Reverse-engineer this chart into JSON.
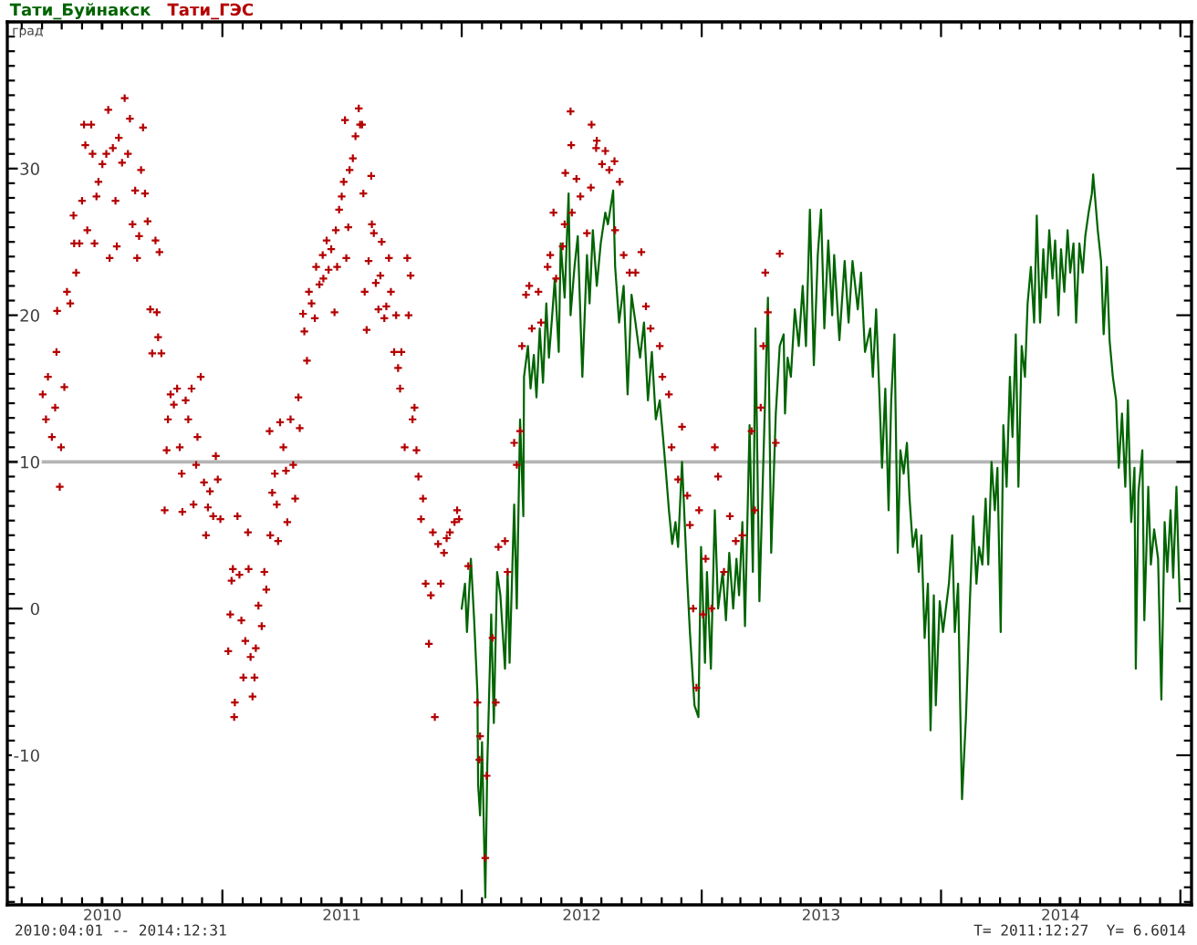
{
  "chart_data": {
    "type": "line",
    "ylabel": "град",
    "legend": "top left",
    "annotations": [
      "2010:04:01 -- 2014:12:31",
      "T= 2011:12:27  Y= 6.6014"
    ],
    "xlim": [
      "2010-02-07",
      "2015-01-18"
    ],
    "ylim": [
      -20.2,
      40
    ],
    "xticks": [
      {
        "value": "2010-07-02",
        "label": "2010"
      },
      {
        "value": "2011-01-01",
        "label": null
      },
      {
        "value": "2011-07-02",
        "label": "2011"
      },
      {
        "value": "2012-01-01",
        "label": null
      },
      {
        "value": "2012-07-02",
        "label": "2012"
      },
      {
        "value": "2013-01-01",
        "label": null
      },
      {
        "value": "2013-07-02",
        "label": "2013"
      },
      {
        "value": "2014-01-01",
        "label": null
      },
      {
        "value": "2014-07-02",
        "label": "2014"
      },
      {
        "value": "2015-01-01",
        "label": null
      }
    ],
    "yticks": [
      -10,
      0,
      10,
      20,
      30
    ],
    "ref_lines": [
      {
        "axis": "y",
        "value": 10,
        "color": "#b4b4b4"
      }
    ],
    "series": [
      {
        "name": "Тати_Буйнакск",
        "color": "#006400",
        "x": [
          "2012-01-01",
          "2012-01-06",
          "2012-01-09",
          "2012-01-15",
          "2012-01-20",
          "2012-01-25",
          "2012-01-26",
          "2012-01-29",
          "2012-02-01",
          "2012-02-06",
          "2012-02-09",
          "2012-02-15",
          "2012-02-19",
          "2012-02-24",
          "2012-02-29",
          "2012-03-07",
          "2012-03-11",
          "2012-03-14",
          "2012-03-21",
          "2012-03-25",
          "2012-03-30",
          "2012-04-04",
          "2012-04-05",
          "2012-04-11",
          "2012-04-15",
          "2012-04-20",
          "2012-04-24",
          "2012-04-29",
          "2012-05-04",
          "2012-05-09",
          "2012-05-13",
          "2012-05-18",
          "2012-05-22",
          "2012-05-28",
          "2012-05-31",
          "2012-06-06",
          "2012-06-12",
          "2012-06-15",
          "2012-06-21",
          "2012-06-26",
          "2012-07-03",
          "2012-07-10",
          "2012-07-14",
          "2012-07-19",
          "2012-07-25",
          "2012-07-31",
          "2012-08-07",
          "2012-08-11",
          "2012-08-19",
          "2012-08-22",
          "2012-08-28",
          "2012-09-04",
          "2012-09-10",
          "2012-09-16",
          "2012-09-22",
          "2012-09-29",
          "2012-10-05",
          "2012-10-11",
          "2012-10-17",
          "2012-10-23",
          "2012-10-29",
          "2012-11-03",
          "2012-11-08",
          "2012-11-12",
          "2012-11-17",
          "2012-11-22",
          "2012-11-26",
          "2012-12-02",
          "2012-12-10",
          "2012-12-14",
          "2012-12-21",
          "2012-12-27",
          "2012-12-31",
          "2013-01-06",
          "2013-01-09",
          "2013-01-15",
          "2013-01-21",
          "2013-01-26",
          "2013-02-02",
          "2013-02-07",
          "2013-02-12",
          "2013-02-18",
          "2013-02-23",
          "2013-02-27",
          "2013-03-04",
          "2013-03-08",
          "2013-03-15",
          "2013-03-20",
          "2013-03-24",
          "2013-03-30",
          "2013-04-05",
          "2013-04-12",
          "2013-04-17",
          "2013-04-24",
          "2013-04-30",
          "2013-05-06",
          "2013-05-08",
          "2013-05-12",
          "2013-05-17",
          "2013-05-23",
          "2013-05-29",
          "2013-06-04",
          "2013-06-09",
          "2013-06-15",
          "2013-06-21",
          "2013-06-27",
          "2013-07-02",
          "2013-07-07",
          "2013-07-13",
          "2013-07-19",
          "2013-07-22",
          "2013-07-30",
          "2013-08-07",
          "2013-08-13",
          "2013-08-19",
          "2013-08-27",
          "2013-09-01",
          "2013-09-07",
          "2013-09-15",
          "2013-09-19",
          "2013-09-24",
          "2013-09-29",
          "2013-10-03",
          "2013-10-08",
          "2013-10-13",
          "2013-10-17",
          "2013-10-22",
          "2013-10-27",
          "2013-10-31",
          "2013-11-05",
          "2013-11-10",
          "2013-11-14",
          "2013-11-19",
          "2013-11-24",
          "2013-11-28",
          "2013-12-02",
          "2013-12-07",
          "2013-12-12",
          "2013-12-16",
          "2013-12-21",
          "2013-12-24",
          "2013-12-30",
          "2014-01-04",
          "2014-01-13",
          "2014-01-18",
          "2014-01-22",
          "2014-01-27",
          "2014-01-30",
          "2014-02-02",
          "2014-02-08",
          "2014-02-14",
          "2014-02-19",
          "2014-02-24",
          "2014-02-28",
          "2014-03-05",
          "2014-03-10",
          "2014-03-14",
          "2014-03-19",
          "2014-03-24",
          "2014-03-28",
          "2014-04-02",
          "2014-04-06",
          "2014-04-11",
          "2014-04-16",
          "2014-04-20",
          "2014-04-25",
          "2014-04-29",
          "2014-05-04",
          "2014-05-09",
          "2014-05-13",
          "2014-05-18",
          "2014-05-23",
          "2014-05-27",
          "2014-06-01",
          "2014-06-06",
          "2014-06-10",
          "2014-06-15",
          "2014-06-20",
          "2014-06-24",
          "2014-06-29",
          "2014-07-03",
          "2014-07-08",
          "2014-07-13",
          "2014-07-17",
          "2014-07-22",
          "2014-07-26",
          "2014-07-31",
          "2014-08-05",
          "2014-08-09",
          "2014-08-14",
          "2014-08-19",
          "2014-08-21",
          "2014-08-28",
          "2014-09-02",
          "2014-09-06",
          "2014-09-11",
          "2014-09-15",
          "2014-09-20",
          "2014-09-25",
          "2014-09-29",
          "2014-10-04",
          "2014-10-09",
          "2014-10-13",
          "2014-10-18",
          "2014-10-23",
          "2014-10-25",
          "2014-10-29",
          "2014-11-04",
          "2014-11-07",
          "2014-11-13",
          "2014-11-17",
          "2014-11-22",
          "2014-11-28",
          "2014-12-03",
          "2014-12-08",
          "2014-12-12",
          "2014-12-17",
          "2014-12-21",
          "2014-12-26",
          "2014-12-31"
        ],
        "values": [
          0.0,
          1.7,
          -1.6,
          3.4,
          -0.8,
          -5.8,
          -12.0,
          -14.1,
          -9.1,
          -19.7,
          -10.7,
          -0.4,
          -7.8,
          2.5,
          0.9,
          -4.1,
          2.5,
          -3.7,
          7.1,
          0.0,
          12.9,
          6.3,
          15.8,
          17.9,
          15.0,
          17.3,
          14.4,
          19.1,
          15.4,
          20.8,
          17.1,
          20.0,
          22.5,
          17.5,
          24.9,
          21.2,
          28.3,
          20.0,
          23.3,
          25.4,
          15.8,
          24.1,
          20.8,
          25.8,
          22.0,
          24.9,
          27.0,
          26.2,
          28.5,
          23.3,
          19.5,
          22.0,
          14.6,
          21.4,
          19.5,
          17.1,
          19.5,
          14.2,
          17.5,
          12.9,
          14.2,
          11.7,
          9.0,
          6.7,
          4.4,
          5.9,
          4.2,
          10.0,
          1.9,
          -1.6,
          -6.6,
          -7.4,
          4.2,
          -3.7,
          2.5,
          -4.1,
          6.7,
          0.0,
          2.5,
          -0.8,
          3.8,
          0.0,
          3.4,
          0.9,
          5.9,
          -1.2,
          12.5,
          2.5,
          19.1,
          0.5,
          10.0,
          21.2,
          3.8,
          13.3,
          17.9,
          18.7,
          13.3,
          17.1,
          15.8,
          20.4,
          17.9,
          22.0,
          17.9,
          27.2,
          16.6,
          24.1,
          27.2,
          19.1,
          25.1,
          20.0,
          24.1,
          18.3,
          23.7,
          19.5,
          23.7,
          20.4,
          22.9,
          17.5,
          19.1,
          15.8,
          20.4,
          14.6,
          9.6,
          15.0,
          6.7,
          14.2,
          18.7,
          3.8,
          10.8,
          9.2,
          11.3,
          7.5,
          4.2,
          5.4,
          2.5,
          5.0,
          -2.0,
          1.7,
          -8.3,
          0.9,
          -6.6,
          0.5,
          -1.6,
          1.7,
          5.0,
          -1.6,
          1.7,
          -6.2,
          -13.0,
          -7.4,
          0.5,
          6.3,
          1.7,
          4.2,
          3.0,
          7.5,
          3.0,
          10.0,
          6.7,
          9.6,
          -1.6,
          12.5,
          8.3,
          15.8,
          11.7,
          18.7,
          8.3,
          17.9,
          15.8,
          20.8,
          23.3,
          19.5,
          26.8,
          19.5,
          24.5,
          21.2,
          25.8,
          22.5,
          25.1,
          20.0,
          24.5,
          21.6,
          25.8,
          22.9,
          24.9,
          19.5,
          24.9,
          22.9,
          25.4,
          27.0,
          28.3,
          29.6,
          25.8,
          23.7,
          18.7,
          23.3,
          18.3,
          15.8,
          14.2,
          9.6,
          13.3,
          8.3,
          14.2,
          5.9,
          9.6,
          -4.1,
          7.9,
          10.8,
          -0.8,
          8.3,
          3.0,
          5.4,
          3.4,
          -6.2,
          5.9,
          2.5,
          6.7,
          2.1,
          8.3,
          0.5
        ]
      },
      {
        "name": "Тати_ГЭС",
        "type": "scatter",
        "marker": "cross",
        "color": "#b40000",
        "x": [
          "2010-04-02",
          "2010-04-07",
          "2010-04-10",
          "2010-04-16",
          "2010-04-21",
          "2010-04-23",
          "2010-04-24",
          "2010-04-28",
          "2010-04-30",
          "2010-05-05",
          "2010-05-09",
          "2010-05-14",
          "2010-05-19",
          "2010-05-20",
          "2010-05-23",
          "2010-05-28",
          "2010-06-01",
          "2010-06-04",
          "2010-06-06",
          "2010-06-09",
          "2010-06-15",
          "2010-06-17",
          "2010-06-20",
          "2010-06-23",
          "2010-06-26",
          "2010-07-02",
          "2010-07-08",
          "2010-07-11",
          "2010-07-13",
          "2010-07-18",
          "2010-07-22",
          "2010-07-24",
          "2010-07-27",
          "2010-08-01",
          "2010-08-05",
          "2010-08-10",
          "2010-08-13",
          "2010-08-17",
          "2010-08-21",
          "2010-08-24",
          "2010-08-27",
          "2010-08-30",
          "2010-09-02",
          "2010-09-05",
          "2010-09-09",
          "2010-09-13",
          "2010-09-16",
          "2010-09-21",
          "2010-09-23",
          "2010-09-25",
          "2010-09-27",
          "2010-09-30",
          "2010-10-05",
          "2010-10-08",
          "2010-10-10",
          "2010-10-14",
          "2010-10-19",
          "2010-10-24",
          "2010-10-28",
          "2010-10-31",
          "2010-11-01",
          "2010-11-06",
          "2010-11-10",
          "2010-11-15",
          "2010-11-18",
          "2010-11-22",
          "2010-11-24",
          "2010-11-29",
          "2010-12-04",
          "2010-12-07",
          "2010-12-10",
          "2010-12-13",
          "2010-12-18",
          "2010-12-22",
          "2010-12-25",
          "2010-12-29",
          "2011-01-10",
          "2011-01-13",
          "2011-01-15",
          "2011-01-17",
          "2011-01-19",
          "2011-01-20",
          "2011-01-24",
          "2011-01-27",
          "2011-01-30",
          "2011-02-02",
          "2011-02-05",
          "2011-02-09",
          "2011-02-10",
          "2011-02-13",
          "2011-02-16",
          "2011-02-19",
          "2011-02-21",
          "2011-02-25",
          "2011-03-02",
          "2011-03-06",
          "2011-03-09",
          "2011-03-14",
          "2011-03-15",
          "2011-03-18",
          "2011-03-22",
          "2011-03-25",
          "2011-03-27",
          "2011-03-30",
          "2011-04-04",
          "2011-04-08",
          "2011-04-10",
          "2011-04-15",
          "2011-04-19",
          "2011-04-22",
          "2011-04-27",
          "2011-04-29",
          "2011-05-04",
          "2011-05-06",
          "2011-05-10",
          "2011-05-13",
          "2011-05-17",
          "2011-05-22",
          "2011-05-24",
          "2011-05-29",
          "2011-06-03",
          "2011-06-04",
          "2011-06-09",
          "2011-06-12",
          "2011-06-16",
          "2011-06-21",
          "2011-06-23",
          "2011-06-25",
          "2011-06-28",
          "2011-07-02",
          "2011-07-05",
          "2011-07-07",
          "2011-07-09",
          "2011-07-12",
          "2011-07-14",
          "2011-07-19",
          "2011-07-23",
          "2011-07-28",
          "2011-07-30",
          "2011-08-02",
          "2011-08-04",
          "2011-08-06",
          "2011-08-09",
          "2011-08-12",
          "2011-08-16",
          "2011-08-17",
          "2011-08-20",
          "2011-08-23",
          "2011-08-27",
          "2011-08-30",
          "2011-09-01",
          "2011-09-05",
          "2011-09-08",
          "2011-09-12",
          "2011-09-15",
          "2011-09-20",
          "2011-09-23",
          "2011-09-26",
          "2011-09-29",
          "2011-10-01",
          "2011-10-06",
          "2011-10-10",
          "2011-10-12",
          "2011-10-15",
          "2011-10-18",
          "2011-10-21",
          "2011-10-24",
          "2011-10-27",
          "2011-10-31",
          "2011-11-03",
          "2011-11-07",
          "2011-11-12",
          "2011-11-15",
          "2011-11-18",
          "2011-11-21",
          "2011-11-26",
          "2011-11-30",
          "2011-12-05",
          "2011-12-09",
          "2011-12-14",
          "2011-12-21",
          "2011-12-25",
          "2011-12-28",
          "2012-01-11",
          "2012-01-25",
          "2012-01-28",
          "2012-01-29",
          "2012-02-06",
          "2012-02-08",
          "2012-02-17",
          "2012-02-22",
          "2012-02-26",
          "2012-03-07",
          "2012-03-11",
          "2012-03-21",
          "2012-03-25",
          "2012-03-30",
          "2012-04-02",
          "2012-04-08",
          "2012-04-13",
          "2012-04-17",
          "2012-04-27",
          "2012-05-01",
          "2012-05-11",
          "2012-05-15",
          "2012-05-20",
          "2012-05-24",
          "2012-06-03",
          "2012-06-06",
          "2012-06-07",
          "2012-06-15",
          "2012-06-16",
          "2012-06-17",
          "2012-06-24",
          "2012-06-30",
          "2012-07-10",
          "2012-07-16",
          "2012-07-17",
          "2012-07-24",
          "2012-07-25",
          "2012-08-02",
          "2012-08-07",
          "2012-08-13",
          "2012-08-21",
          "2012-08-22",
          "2012-08-29",
          "2012-09-04",
          "2012-09-13",
          "2012-09-22",
          "2012-10-01",
          "2012-10-08",
          "2012-10-15",
          "2012-10-29",
          "2012-11-02",
          "2012-11-12",
          "2012-11-16",
          "2012-11-26",
          "2012-12-02",
          "2012-12-10",
          "2012-12-14",
          "2012-12-19",
          "2012-12-24",
          "2012-12-28",
          "2013-01-03",
          "2013-01-07",
          "2013-01-16",
          "2013-01-21",
          "2013-01-26",
          "2013-02-04",
          "2013-02-13",
          "2013-02-22",
          "2013-03-04",
          "2013-03-18",
          "2013-03-23",
          "2013-04-01",
          "2013-04-05",
          "2013-04-08",
          "2013-04-12",
          "2013-04-24",
          "2013-04-30"
        ],
        "values": [
          14.6,
          12.9,
          15.8,
          11.7,
          13.7,
          17.5,
          20.3,
          8.3,
          11.0,
          15.1,
          21.6,
          20.8,
          26.8,
          24.9,
          22.9,
          24.9,
          27.8,
          33.0,
          31.6,
          25.8,
          33.0,
          31.0,
          24.9,
          28.1,
          29.1,
          30.3,
          31.0,
          34.0,
          23.9,
          31.4,
          27.8,
          24.7,
          32.1,
          30.4,
          34.8,
          31.0,
          33.4,
          26.2,
          28.5,
          23.9,
          25.4,
          29.9,
          32.8,
          28.3,
          26.4,
          20.4,
          17.4,
          25.1,
          20.2,
          18.5,
          24.3,
          17.4,
          6.7,
          10.8,
          12.9,
          14.6,
          13.9,
          15.0,
          11.0,
          9.2,
          6.6,
          14.2,
          12.9,
          15.0,
          7.1,
          9.8,
          11.7,
          15.8,
          8.6,
          5.0,
          6.9,
          8.0,
          6.3,
          10.4,
          8.8,
          6.1,
          -2.9,
          -0.4,
          1.9,
          2.7,
          -7.4,
          -6.4,
          6.3,
          2.3,
          -0.8,
          -4.7,
          -2.2,
          5.2,
          2.7,
          -3.3,
          -6.0,
          -4.7,
          -2.7,
          0.2,
          -1.2,
          2.5,
          1.3,
          12.1,
          5.0,
          7.9,
          9.2,
          7.1,
          4.6,
          12.7,
          11.0,
          9.4,
          5.9,
          12.9,
          9.8,
          7.5,
          14.4,
          12.3,
          20.1,
          18.9,
          16.9,
          21.6,
          20.8,
          19.8,
          23.3,
          22.1,
          24.1,
          22.5,
          25.1,
          23.1,
          24.5,
          20.2,
          25.8,
          23.3,
          27.2,
          28.1,
          29.1,
          33.3,
          23.9,
          26.0,
          29.9,
          30.7,
          32.2,
          34.1,
          33.0,
          33.0,
          28.3,
          21.6,
          19.0,
          23.7,
          29.5,
          26.2,
          25.6,
          22.2,
          20.4,
          22.7,
          25.0,
          19.8,
          20.6,
          23.9,
          21.6,
          17.5,
          20.0,
          16.4,
          15.0,
          17.5,
          11.0,
          23.9,
          20.0,
          22.7,
          12.9,
          13.7,
          10.8,
          9.0,
          6.1,
          7.5,
          1.7,
          -2.4,
          0.9,
          5.2,
          -7.4,
          4.4,
          1.7,
          3.8,
          4.8,
          5.2,
          5.9,
          6.7,
          6.1,
          2.9,
          -6.4,
          -10.3,
          -8.7,
          -17.0,
          -11.4,
          -2.0,
          -6.4,
          4.2,
          4.6,
          2.5,
          11.3,
          9.8,
          12.1,
          17.9,
          21.4,
          22.0,
          19.1,
          21.6,
          19.5,
          23.3,
          24.1,
          27.0,
          22.5,
          24.7,
          26.2,
          29.7,
          33.9,
          31.6,
          27.0,
          29.3,
          28.1,
          25.6,
          28.7,
          33.0,
          31.4,
          31.9,
          30.3,
          31.2,
          29.9,
          30.5,
          25.8,
          29.1,
          24.1,
          22.9,
          22.9,
          24.3,
          20.6,
          19.1,
          17.9,
          15.8,
          14.6,
          11.0,
          8.8,
          12.4,
          7.7,
          5.7,
          0.0,
          -5.4,
          6.7,
          -0.4,
          3.4,
          0.0,
          11.0,
          9.0,
          2.5,
          6.3,
          4.6,
          5.0,
          12.1,
          6.7,
          13.7,
          17.9,
          22.9,
          20.2,
          11.3,
          24.2
        ]
      }
    ]
  }
}
